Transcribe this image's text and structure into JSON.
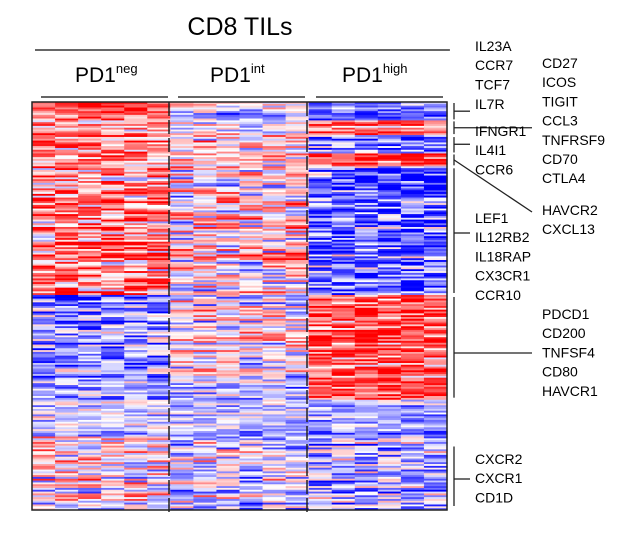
{
  "chart_data": {
    "type": "heatmap",
    "title": "CD8 TILs",
    "groups": [
      {
        "base": "PD1",
        "sup": "neg"
      },
      {
        "base": "PD1",
        "sup": "int"
      },
      {
        "base": "PD1",
        "sup": "high"
      }
    ],
    "samples_per_group": 6,
    "color_scale": {
      "low": "#0000ff",
      "mid": "#ffffff",
      "high": "#ff0000",
      "range": [
        -1,
        1
      ]
    },
    "row_blocks": [
      {
        "rows": 10,
        "profile": [
          0.5,
          -0.1,
          -0.5
        ],
        "noise": 0.4
      },
      {
        "rows": 8,
        "profile": [
          0.3,
          0.0,
          0.4
        ],
        "noise": 0.4
      },
      {
        "rows": 10,
        "profile": [
          0.3,
          0.1,
          -0.4
        ],
        "noise": 0.45
      },
      {
        "rows": 7,
        "profile": [
          0.2,
          0.1,
          0.5
        ],
        "noise": 0.4
      },
      {
        "rows": 70,
        "profile": [
          0.4,
          0.1,
          -0.45
        ],
        "noise": 0.55
      },
      {
        "rows": 45,
        "profile": [
          -0.35,
          0.0,
          0.5
        ],
        "noise": 0.45
      },
      {
        "rows": 12,
        "profile": [
          -0.3,
          -0.2,
          0.55
        ],
        "noise": 0.35
      },
      {
        "rows": 20,
        "profile": [
          -0.2,
          -0.25,
          -0.3
        ],
        "noise": 0.3
      },
      {
        "rows": 40,
        "profile": [
          0.0,
          -0.15,
          -0.3
        ],
        "noise": 0.5
      }
    ],
    "gene_annotations": [
      {
        "genes": [
          "IL23A",
          "CCR7",
          "TCF7"
        ],
        "column": "left",
        "bracket": "top-group"
      },
      {
        "genes": [
          "IL7R"
        ],
        "column": "left",
        "bracket": "block-1"
      },
      {
        "genes": [
          "CD27",
          "ICOS",
          "TIGIT",
          "CCL3",
          "TNFRSF9",
          "CD70",
          "CTLA4"
        ],
        "column": "right",
        "bracket": "block-2"
      },
      {
        "genes": [
          "IFNGR1",
          "IL4I1",
          "CCR6"
        ],
        "column": "left",
        "bracket": "block-3"
      },
      {
        "genes": [
          "HAVCR2",
          "CXCL13"
        ],
        "column": "right",
        "bracket": "block-4"
      },
      {
        "genes": [
          "LEF1",
          "IL12RB2",
          "IL18RAP",
          "CX3CR1",
          "CCR10"
        ],
        "column": "left",
        "bracket": "block-5"
      },
      {
        "genes": [
          "PDCD1",
          "CD200",
          "TNFSF4",
          "CD80",
          "HAVCR1"
        ],
        "column": "right",
        "bracket": "block-6"
      },
      {
        "genes": [
          "CXCR2",
          "CXCR1",
          "CD1D"
        ],
        "column": "left",
        "bracket": "block-9"
      }
    ],
    "legend": "none",
    "grid": false
  }
}
